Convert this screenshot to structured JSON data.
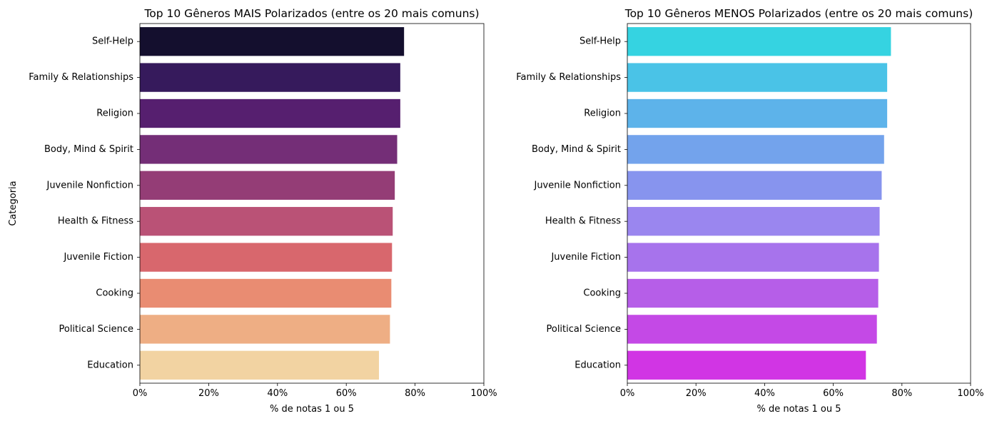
{
  "chart_data": [
    {
      "type": "bar",
      "orientation": "horizontal",
      "title": "Top 10 Gêneros MAIS Polarizados (entre os 20 mais comuns)",
      "xlabel": "% de notas 1 ou 5",
      "ylabel": "Categoria",
      "xlim": [
        0,
        1
      ],
      "xticks": [
        "0%",
        "20%",
        "40%",
        "60%",
        "80%",
        "100%"
      ],
      "categories": [
        "Self-Help",
        "Family & Relationships",
        "Religion",
        "Body, Mind & Spirit",
        "Juvenile Nonfiction",
        "Health & Fitness",
        "Juvenile Fiction",
        "Cooking",
        "Political Science",
        "Education"
      ],
      "values": [
        0.768,
        0.757,
        0.757,
        0.748,
        0.741,
        0.735,
        0.733,
        0.731,
        0.727,
        0.695
      ],
      "colors": [
        "#140f2e",
        "#361a5c",
        "#561f6f",
        "#742e77",
        "#943d76",
        "#ba5276",
        "#d8676d",
        "#e98c72",
        "#eeae84",
        "#f2d3a2"
      ],
      "grid": false
    },
    {
      "type": "bar",
      "orientation": "horizontal",
      "title": "Top 10 Gêneros MENOS Polarizados (entre os 20 mais comuns)",
      "xlabel": "% de notas 1 ou 5",
      "ylabel": "",
      "xlim": [
        0,
        1
      ],
      "xticks": [
        "0%",
        "20%",
        "40%",
        "60%",
        "80%",
        "100%"
      ],
      "categories": [
        "Self-Help",
        "Family & Relationships",
        "Religion",
        "Body, Mind & Spirit",
        "Juvenile Nonfiction",
        "Health & Fitness",
        "Juvenile Fiction",
        "Cooking",
        "Political Science",
        "Education"
      ],
      "values": [
        0.768,
        0.757,
        0.757,
        0.748,
        0.741,
        0.735,
        0.733,
        0.731,
        0.727,
        0.695
      ],
      "colors": [
        "#35d3e1",
        "#4ac3e7",
        "#5db3ea",
        "#73a3ec",
        "#8794ee",
        "#9a86ef",
        "#a773ec",
        "#b65ee8",
        "#c449e6",
        "#d135e4"
      ],
      "grid": false
    }
  ]
}
